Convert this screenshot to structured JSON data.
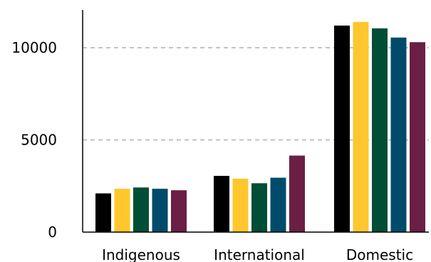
{
  "chart_data": {
    "type": "bar",
    "categories": [
      "Indigenous",
      "International",
      "Domestic"
    ],
    "series": [
      {
        "color": "#000000",
        "values": [
          2100,
          3050,
          11200
        ]
      },
      {
        "color": "#FFC72C",
        "values": [
          2350,
          2900,
          11400
        ]
      },
      {
        "color": "#004E36",
        "values": [
          2420,
          2650,
          11050
        ]
      },
      {
        "color": "#004B6B",
        "values": [
          2350,
          2950,
          10550
        ]
      },
      {
        "color": "#6B1F45",
        "values": [
          2270,
          4150,
          10300
        ]
      }
    ],
    "yticks": [
      0,
      5000,
      10000
    ],
    "ytick_labels": [
      "0",
      "5000",
      "10000"
    ],
    "ylim": [
      0,
      12000
    ],
    "grid": "y-dashed",
    "legend": "none"
  }
}
